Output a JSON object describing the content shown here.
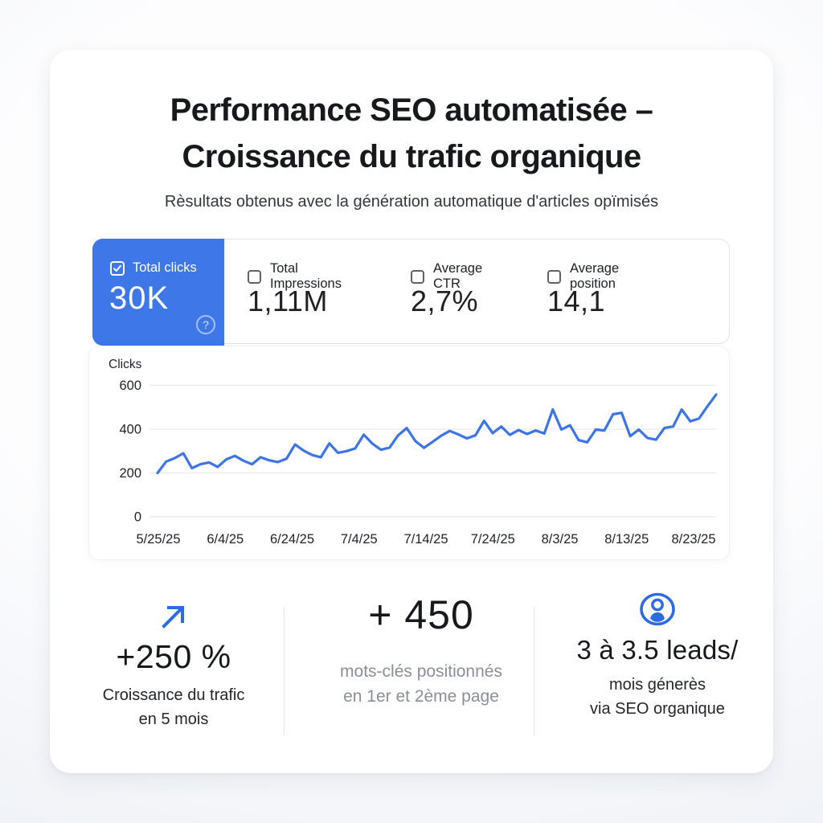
{
  "header": {
    "title_line1": "Performance SEO automatisée –",
    "title_line2": "Croissance du trafic organique",
    "subtitle": "Rèsultats obtenus avec la génération automatique d'articles opïmisés"
  },
  "metrics": [
    {
      "label": "Total clicks",
      "value": "30K",
      "selected": true,
      "help_icon": "?"
    },
    {
      "label": "Total Impressions",
      "value": "1,11M",
      "selected": false
    },
    {
      "label": "Average CTR",
      "value": "2,7%",
      "selected": false
    },
    {
      "label": "Average position",
      "value": "14,1",
      "selected": false
    }
  ],
  "chart_data": {
    "type": "line",
    "ylabel": "Clicks",
    "y_ticks": [
      0,
      200,
      400,
      600
    ],
    "ylim": [
      0,
      650
    ],
    "grid": "horizontal",
    "x_tick_labels": [
      "5/25/25",
      "6/4/25",
      "6/24/25",
      "7/4/25",
      "7/14/25",
      "7/24/25",
      "8/3/25",
      "8/13/25",
      "8/23/25"
    ],
    "series": [
      {
        "name": "Clicks",
        "color": "#3d74e6",
        "values": [
          200,
          252,
          268,
          290,
          222,
          240,
          248,
          228,
          262,
          278,
          256,
          240,
          272,
          258,
          250,
          265,
          330,
          302,
          282,
          272,
          335,
          292,
          300,
          312,
          375,
          334,
          306,
          316,
          372,
          405,
          346,
          315,
          342,
          370,
          392,
          376,
          358,
          372,
          438,
          382,
          412,
          374,
          396,
          378,
          394,
          380,
          490,
          398,
          418,
          350,
          340,
          398,
          394,
          468,
          475,
          368,
          398,
          360,
          352,
          406,
          412,
          490,
          436,
          448,
          505,
          558
        ]
      }
    ]
  },
  "stats": [
    {
      "icon": "trend-up-arrow",
      "value": "+250 %",
      "line1": "Croissance du trafic",
      "line2": "en 5 mois"
    },
    {
      "icon": "",
      "value": "+ 450",
      "line1": "mots-clés positionnés",
      "line2": "en 1er et 2ème page"
    },
    {
      "icon": "person-circle",
      "value": "3 à 3.5 leads/",
      "line1": "mois génerès",
      "line2": "via SEO organique"
    }
  ],
  "colors": {
    "accent_blue": "#3d77e8",
    "chart_line": "#3d74e6",
    "gridline": "#e7e9ed",
    "muted_text": "#8a8f99"
  }
}
